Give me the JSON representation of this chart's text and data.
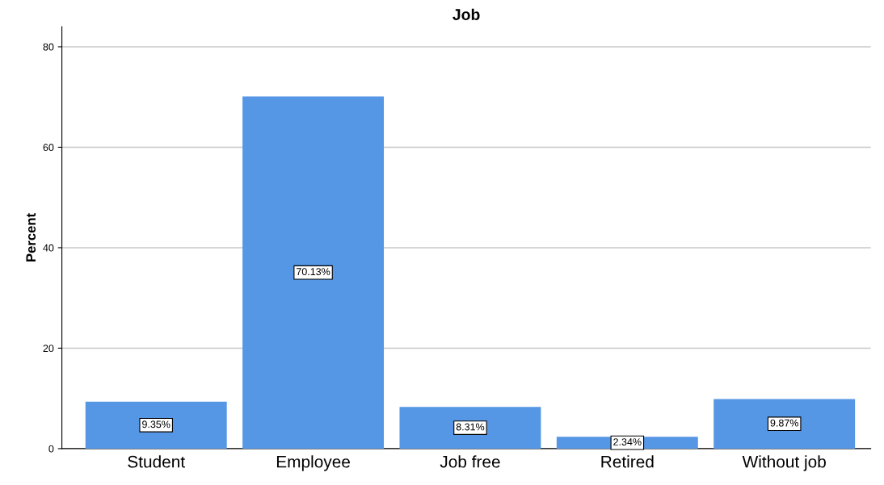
{
  "chart_data": {
    "type": "bar",
    "title": "Job",
    "ylabel": "Percent",
    "categories": [
      "Student",
      "Employee",
      "Job free",
      "Retired",
      "Without job"
    ],
    "values": [
      9.35,
      70.13,
      8.31,
      2.34,
      9.87
    ],
    "value_labels": [
      "9.35%",
      "70.13%",
      "8.31%",
      "2.34%",
      "9.87%"
    ],
    "color": "#5596e5",
    "ylim": [
      0,
      84
    ],
    "yticks": [
      0,
      20,
      40,
      60,
      80
    ],
    "grid": "y",
    "legend": false
  }
}
